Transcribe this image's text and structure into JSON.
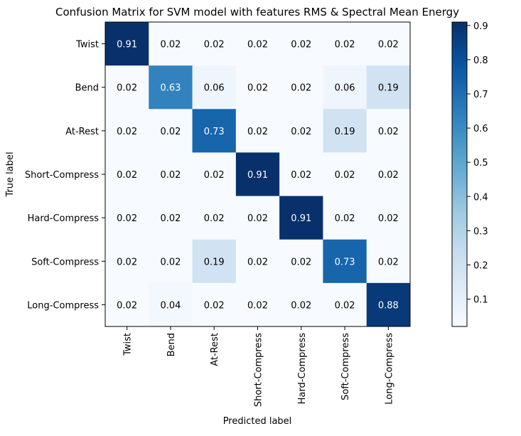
{
  "chart_data": {
    "type": "heatmap",
    "title": "Confusion Matrix for SVM model with features RMS & Spectral Mean Energy",
    "xlabel": "Predicted label",
    "ylabel": "True label",
    "x_categories": [
      "Twist",
      "Bend",
      "At-Rest",
      "Short-Compress",
      "Hard-Compress",
      "Soft-Compress",
      "Long-Compress"
    ],
    "y_categories": [
      "Twist",
      "Bend",
      "At-Rest",
      "Short-Compress",
      "Hard-Compress",
      "Soft-Compress",
      "Long-Compress"
    ],
    "values": [
      [
        0.91,
        0.02,
        0.02,
        0.02,
        0.02,
        0.02,
        0.02
      ],
      [
        0.02,
        0.63,
        0.06,
        0.02,
        0.02,
        0.06,
        0.19
      ],
      [
        0.02,
        0.02,
        0.73,
        0.02,
        0.02,
        0.19,
        0.02
      ],
      [
        0.02,
        0.02,
        0.02,
        0.91,
        0.02,
        0.02,
        0.02
      ],
      [
        0.02,
        0.02,
        0.02,
        0.02,
        0.91,
        0.02,
        0.02
      ],
      [
        0.02,
        0.02,
        0.19,
        0.02,
        0.02,
        0.73,
        0.02
      ],
      [
        0.02,
        0.04,
        0.02,
        0.02,
        0.02,
        0.02,
        0.88
      ]
    ],
    "colormap": "Blues",
    "colorbar": {
      "ticks": [
        0.1,
        0.2,
        0.3,
        0.4,
        0.5,
        0.6,
        0.7,
        0.8,
        0.9
      ],
      "range": [
        0.02,
        0.91
      ]
    }
  }
}
